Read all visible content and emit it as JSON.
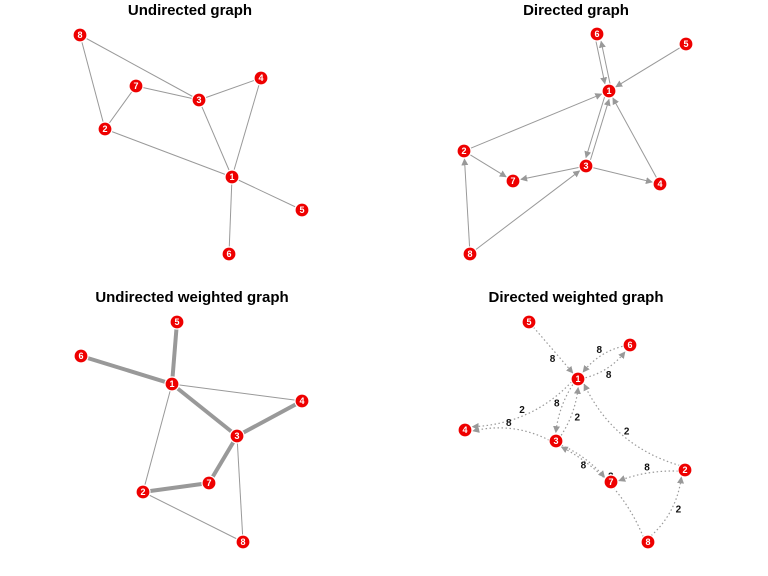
{
  "panels": [
    {
      "id": "undirected",
      "title": "Undirected graph",
      "directed": false,
      "weighted": false,
      "nodes": [
        "1",
        "2",
        "3",
        "4",
        "5",
        "6",
        "7",
        "8"
      ],
      "edges": [
        {
          "from": "8",
          "to": "3"
        },
        {
          "from": "8",
          "to": "2"
        },
        {
          "from": "7",
          "to": "3"
        },
        {
          "from": "7",
          "to": "2"
        },
        {
          "from": "3",
          "to": "4"
        },
        {
          "from": "3",
          "to": "1"
        },
        {
          "from": "4",
          "to": "1"
        },
        {
          "from": "2",
          "to": "1"
        },
        {
          "from": "1",
          "to": "5"
        },
        {
          "from": "1",
          "to": "6"
        }
      ]
    },
    {
      "id": "directed",
      "title": "Directed graph",
      "directed": true,
      "weighted": false,
      "nodes": [
        "1",
        "2",
        "3",
        "4",
        "5",
        "6",
        "7",
        "8"
      ],
      "edges": [
        {
          "from": "6",
          "to": "1"
        },
        {
          "from": "1",
          "to": "6"
        },
        {
          "from": "5",
          "to": "1"
        },
        {
          "from": "2",
          "to": "1"
        },
        {
          "from": "3",
          "to": "1"
        },
        {
          "from": "1",
          "to": "3"
        },
        {
          "from": "4",
          "to": "1"
        },
        {
          "from": "2",
          "to": "7"
        },
        {
          "from": "3",
          "to": "7"
        },
        {
          "from": "3",
          "to": "4"
        },
        {
          "from": "8",
          "to": "2"
        },
        {
          "from": "8",
          "to": "3"
        }
      ]
    },
    {
      "id": "undirected-weighted",
      "title": "Undirected weighted graph",
      "directed": false,
      "weighted": true,
      "nodes": [
        "1",
        "2",
        "3",
        "4",
        "5",
        "6",
        "7",
        "8"
      ],
      "edges": [
        {
          "from": "5",
          "to": "1",
          "weight": 8
        },
        {
          "from": "6",
          "to": "1",
          "weight": 8
        },
        {
          "from": "1",
          "to": "4",
          "weight": 2
        },
        {
          "from": "1",
          "to": "3",
          "weight": 8
        },
        {
          "from": "1",
          "to": "2",
          "weight": 2
        },
        {
          "from": "3",
          "to": "4",
          "weight": 8
        },
        {
          "from": "3",
          "to": "7",
          "weight": 8
        },
        {
          "from": "3",
          "to": "8",
          "weight": 2
        },
        {
          "from": "7",
          "to": "2",
          "weight": 8
        },
        {
          "from": "2",
          "to": "8",
          "weight": 2
        }
      ]
    },
    {
      "id": "directed-weighted",
      "title": "Directed weighted graph",
      "directed": true,
      "weighted": true,
      "nodes": [
        "1",
        "2",
        "3",
        "4",
        "5",
        "6",
        "7",
        "8"
      ],
      "edges": [
        {
          "from": "5",
          "to": "1",
          "weight": "8"
        },
        {
          "from": "6",
          "to": "1",
          "weight": "8"
        },
        {
          "from": "1",
          "to": "6",
          "weight": "8"
        },
        {
          "from": "1",
          "to": "4",
          "weight": "2"
        },
        {
          "from": "1",
          "to": "3",
          "weight": "8"
        },
        {
          "from": "3",
          "to": "1",
          "weight": "2"
        },
        {
          "from": "2",
          "to": "1",
          "weight": "2"
        },
        {
          "from": "3",
          "to": "4",
          "weight": "8"
        },
        {
          "from": "3",
          "to": "7",
          "weight": "8"
        },
        {
          "from": "2",
          "to": "7",
          "weight": "8"
        },
        {
          "from": "8",
          "to": "3",
          "weight": "2"
        },
        {
          "from": "8",
          "to": "2",
          "weight": "2"
        }
      ]
    }
  ],
  "colors": {
    "node_fill": "#ee0000",
    "node_stroke": "#ffffff",
    "edge": "#999999",
    "label": "#ffffff"
  }
}
